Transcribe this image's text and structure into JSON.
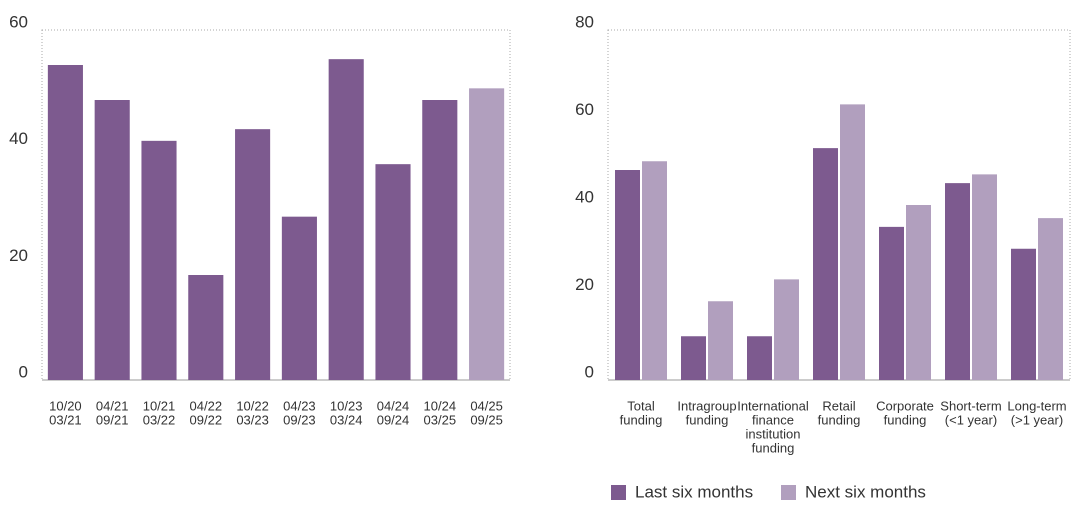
{
  "chart_data": [
    {
      "type": "bar",
      "categories": [
        [
          "10/20",
          "03/21"
        ],
        [
          "04/21",
          "09/21"
        ],
        [
          "10/21",
          "03/22"
        ],
        [
          "04/22",
          "09/22"
        ],
        [
          "10/22",
          "03/23"
        ],
        [
          "04/23",
          "09/23"
        ],
        [
          "10/23",
          "03/24"
        ],
        [
          "04/24",
          "09/24"
        ],
        [
          "10/24",
          "03/25"
        ],
        [
          "04/25",
          "09/25"
        ]
      ],
      "values": [
        54,
        48,
        41,
        18,
        43,
        28,
        55,
        37,
        48,
        50
      ],
      "colors": [
        "#7d5a8f",
        "#7d5a8f",
        "#7d5a8f",
        "#7d5a8f",
        "#7d5a8f",
        "#7d5a8f",
        "#7d5a8f",
        "#7d5a8f",
        "#7d5a8f",
        "#b19fbe"
      ],
      "ylim": [
        0,
        60
      ],
      "yticks": [
        0,
        20,
        40,
        60
      ],
      "grid": false
    },
    {
      "type": "grouped_bar",
      "categories": [
        [
          "Total",
          "funding"
        ],
        [
          "Intragroup",
          "funding"
        ],
        [
          "International",
          "finance",
          "institution",
          "funding"
        ],
        [
          "Retail",
          "funding"
        ],
        [
          "Corporate",
          "funding"
        ],
        [
          "Short-term",
          "(<1 year)"
        ],
        [
          "Long-term",
          "(>1 year)"
        ]
      ],
      "series": [
        {
          "name": "Last six months",
          "color": "#7d5a8f",
          "values": [
            48,
            10,
            10,
            53,
            35,
            45,
            30
          ]
        },
        {
          "name": "Next six months",
          "color": "#b19fbe",
          "values": [
            50,
            18,
            23,
            63,
            40,
            47,
            37
          ]
        }
      ],
      "ylim": [
        0,
        80
      ],
      "yticks": [
        0,
        20,
        40,
        60,
        80
      ],
      "grid": false,
      "legend": "bottom"
    }
  ]
}
